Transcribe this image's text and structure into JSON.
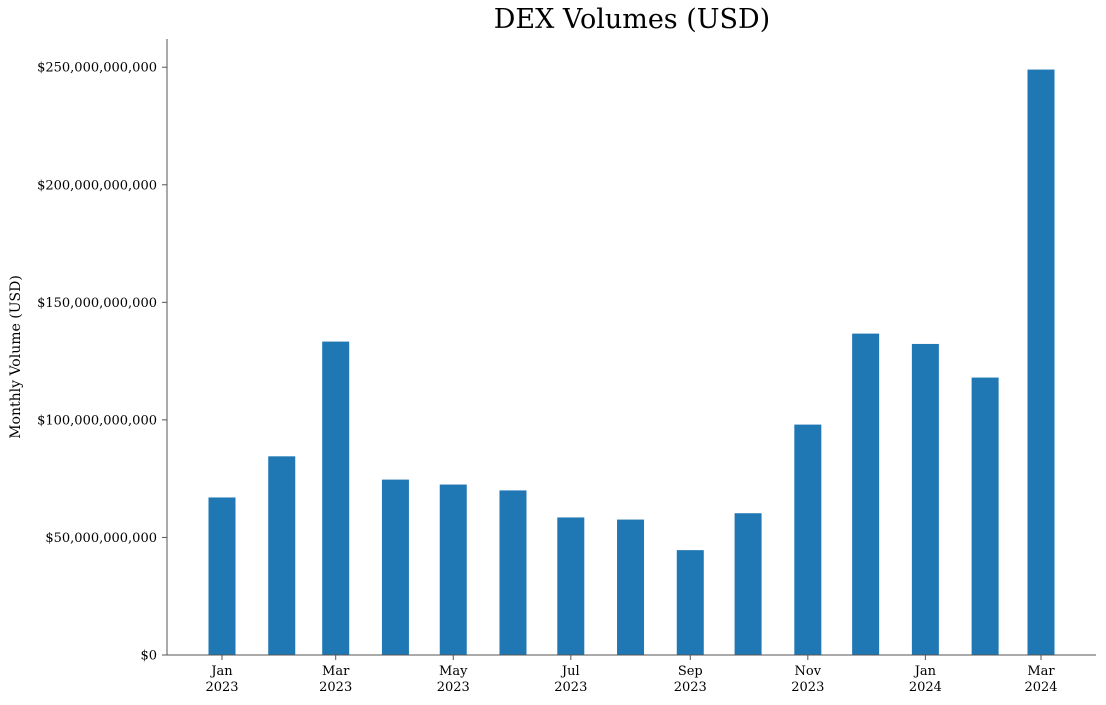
{
  "chart_data": {
    "type": "bar",
    "title": "DEX Volumes (USD)",
    "xlabel": "",
    "ylabel": "Monthly Volume (USD)",
    "ylim": [
      0,
      262000000000
    ],
    "grid": false,
    "bar_color": "#1f77b4",
    "categories": [
      "2023-01",
      "2023-02",
      "2023-03",
      "2023-04",
      "2023-05",
      "2023-06",
      "2023-07",
      "2023-08",
      "2023-09",
      "2023-10",
      "2023-11",
      "2023-12",
      "2024-01",
      "2024-02",
      "2024-03"
    ],
    "values": [
      67000000000,
      84500000000,
      133300000000,
      74600000000,
      72500000000,
      70000000000,
      58500000000,
      57600000000,
      44600000000,
      60300000000,
      98000000000,
      136700000000,
      132300000000,
      118000000000,
      249000000000
    ],
    "yticks": [
      {
        "value": 0,
        "label": "$0"
      },
      {
        "value": 50000000000,
        "label": "$50,000,000,000"
      },
      {
        "value": 100000000000,
        "label": "$100,000,000,000"
      },
      {
        "value": 150000000000,
        "label": "$150,000,000,000"
      },
      {
        "value": 200000000000,
        "label": "$200,000,000,000"
      },
      {
        "value": 250000000000,
        "label": "$250,000,000,000"
      }
    ],
    "xticks": [
      {
        "category": "2023-01",
        "month": "Jan",
        "year": "2023"
      },
      {
        "category": "2023-03",
        "month": "Mar",
        "year": "2023"
      },
      {
        "category": "2023-05",
        "month": "May",
        "year": "2023"
      },
      {
        "category": "2023-07",
        "month": "Jul",
        "year": "2023"
      },
      {
        "category": "2023-09",
        "month": "Sep",
        "year": "2023"
      },
      {
        "category": "2023-11",
        "month": "Nov",
        "year": "2023"
      },
      {
        "category": "2024-01",
        "month": "Jan",
        "year": "2024"
      },
      {
        "category": "2024-03",
        "month": "Mar",
        "year": "2024"
      }
    ]
  }
}
